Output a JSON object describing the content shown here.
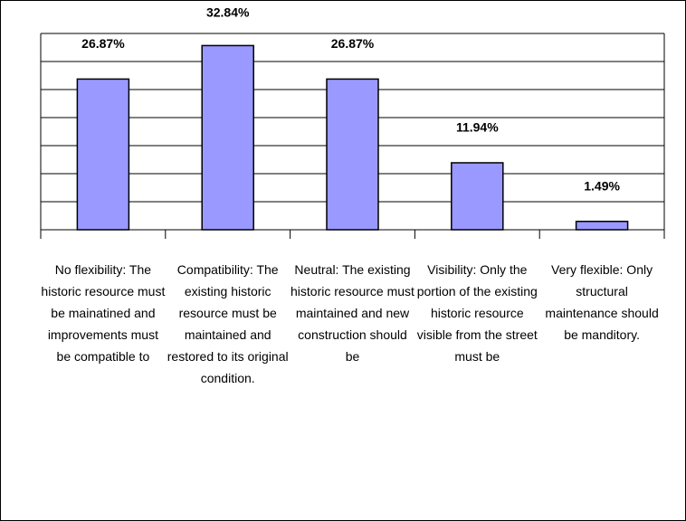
{
  "chart_data": {
    "type": "bar",
    "categories": [
      "No flexibility: The historic resource must be mainatined and improvements must be compatible to",
      "Compatibility: The existing historic resource must be maintained and restored to its original condition.",
      "Neutral: The existing historic resource must maintained and new construction should be",
      "Visibility: Only the portion of the existing historic resource visible from the street must be",
      "Very flexible: Only structural maintenance should be manditory."
    ],
    "values": [
      26.87,
      32.84,
      26.87,
      11.94,
      1.49
    ],
    "value_labels": [
      "26.87%",
      "32.84%",
      "26.87%",
      "11.94%",
      "1.49%"
    ],
    "color": "#9999ff",
    "ylim": [
      0,
      35
    ],
    "yticks": [
      0,
      5,
      10,
      15,
      20,
      25,
      30,
      35
    ],
    "grid": true
  }
}
